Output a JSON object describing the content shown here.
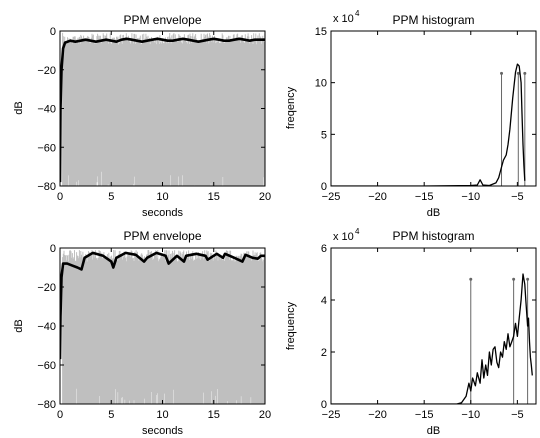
{
  "chart_data": [
    {
      "id": "env1",
      "type": "line",
      "title": "PPM envelope",
      "xlabel": "seconds",
      "ylabel": "dB",
      "xlim": [
        0,
        20
      ],
      "ylim": [
        -80,
        0
      ],
      "xticks": [
        0,
        5,
        10,
        15,
        20
      ],
      "yticks": [
        0,
        -20,
        -40,
        -60,
        -80
      ],
      "raw_signal": {
        "level_range": [
          -80,
          -1
        ]
      },
      "series": [
        {
          "x": [
            0,
            0.05,
            0.15,
            0.3,
            0.5,
            1,
            1.5,
            2,
            2.5,
            3,
            3.5,
            4,
            4.5,
            5,
            5.5,
            6,
            6.5,
            7,
            7.5,
            8,
            8.5,
            9,
            9.5,
            10,
            10.5,
            11,
            11.5,
            12,
            12.5,
            13,
            13.5,
            14,
            14.5,
            15,
            15.5,
            16,
            16.5,
            17,
            17.5,
            18,
            18.5,
            19,
            19.5,
            20
          ],
          "y": [
            -78,
            -40,
            -20,
            -9,
            -6,
            -5,
            -5.5,
            -5,
            -4.5,
            -5,
            -5.5,
            -5,
            -4.5,
            -5,
            -5.5,
            -4.5,
            -4,
            -4.5,
            -5,
            -5.5,
            -5,
            -4.5,
            -4,
            -4.5,
            -5,
            -5,
            -4.5,
            -4,
            -4.5,
            -5,
            -5.5,
            -5,
            -4.5,
            -4,
            -4.5,
            -5,
            -5,
            -4.5,
            -4,
            -4.5,
            -5,
            -4.5,
            -4.5,
            -4.5
          ]
        }
      ]
    },
    {
      "id": "hist1",
      "type": "line",
      "title": "PPM histogram",
      "xlabel": "dB",
      "ylabel": "freqency",
      "xlim": [
        -25,
        -3
      ],
      "ylim": [
        0,
        15
      ],
      "y_scale_exponent": "4",
      "xticks": [
        -25,
        -20,
        -15,
        -10,
        -5
      ],
      "yticks": [
        0,
        5,
        10,
        15
      ],
      "series": [
        {
          "x": [
            -25,
            -20,
            -15,
            -10,
            -9.3,
            -9,
            -8.7,
            -8,
            -7.3,
            -7.0,
            -6.8,
            -6.5,
            -6.2,
            -6.0,
            -5.8,
            -5.5,
            -5.2,
            -5.0,
            -4.8,
            -4.6,
            -4.5,
            -4.4,
            -4.3,
            -4.2
          ],
          "y": [
            0,
            0,
            0,
            0.05,
            0.1,
            0.6,
            0.1,
            0.05,
            0.3,
            0.8,
            1.5,
            2.5,
            3.0,
            4.0,
            5.5,
            8.5,
            11.0,
            11.8,
            11.6,
            10.0,
            7.0,
            4.0,
            2.0,
            0.5
          ]
        }
      ],
      "markers": [
        -6.7,
        -4.9,
        -4.2
      ],
      "marker_top": 10.9
    },
    {
      "id": "env2",
      "type": "line",
      "title": "PPM envelope",
      "xlabel": "seconds",
      "ylabel": "dB",
      "xlim": [
        0,
        20
      ],
      "ylim": [
        -80,
        0
      ],
      "xticks": [
        0,
        5,
        10,
        15,
        20
      ],
      "yticks": [
        0,
        -20,
        -40,
        -60,
        -80
      ],
      "raw_signal": {
        "level_range": [
          -80,
          -1
        ]
      },
      "series": [
        {
          "x": [
            0,
            0.05,
            0.15,
            0.3,
            0.7,
            1.2,
            1.7,
            2.1,
            2.4,
            3.2,
            4.2,
            5.0,
            5.2,
            5.5,
            6.4,
            7.4,
            8.2,
            8.5,
            9.4,
            10.3,
            10.6,
            11.4,
            12.1,
            12.3,
            13.3,
            14.2,
            14.4,
            15.3,
            15.9,
            16.1,
            17.0,
            17.8,
            18.1,
            18.8,
            19.3,
            19.6,
            20
          ],
          "y": [
            -57,
            -35,
            -15,
            -8,
            -8,
            -9,
            -10,
            -11,
            -5,
            -2.5,
            -4,
            -7,
            -10,
            -5,
            -2.5,
            -3.5,
            -7,
            -5,
            -2.5,
            -4,
            -8,
            -4,
            -7,
            -4,
            -3,
            -4,
            -6,
            -3,
            -5,
            -3,
            -5,
            -7,
            -3.5,
            -5,
            -5.5,
            -4,
            -4
          ]
        }
      ]
    },
    {
      "id": "hist2",
      "type": "line",
      "title": "PPM histogram",
      "xlabel": "dB",
      "ylabel": "frequency",
      "xlim": [
        -25,
        -3
      ],
      "ylim": [
        0,
        6
      ],
      "y_scale_exponent": "4",
      "xticks": [
        -25,
        -20,
        -15,
        -10,
        -5
      ],
      "yticks": [
        0,
        2,
        4,
        6
      ],
      "series": [
        {
          "x": [
            -25,
            -20,
            -15,
            -11.5,
            -11.0,
            -10.5,
            -10.2,
            -10.0,
            -9.8,
            -9.5,
            -9.3,
            -9.0,
            -8.8,
            -8.6,
            -8.4,
            -8.2,
            -8.0,
            -7.8,
            -7.6,
            -7.4,
            -7.2,
            -7.0,
            -6.8,
            -6.6,
            -6.4,
            -6.2,
            -6.0,
            -5.8,
            -5.6,
            -5.4,
            -5.2,
            -5.0,
            -4.8,
            -4.6,
            -4.4,
            -4.3,
            -4.2,
            -4.1,
            -4.0,
            -3.9,
            -3.8,
            -3.7,
            -3.6,
            -3.5,
            -3.4
          ],
          "y": [
            0,
            0,
            0,
            0,
            0.05,
            0.3,
            0.8,
            0.5,
            1.0,
            0.7,
            1.2,
            0.8,
            1.7,
            1.0,
            1.5,
            1.1,
            2.0,
            1.5,
            2.1,
            2.2,
            1.6,
            1.4,
            2.0,
            1.8,
            2.4,
            2.1,
            2.7,
            2.2,
            2.4,
            2.6,
            3.1,
            2.6,
            3.3,
            4.0,
            5.0,
            4.8,
            4.6,
            4.0,
            3.5,
            3.0,
            3.3,
            2.4,
            1.8,
            1.5,
            1.1
          ]
        }
      ],
      "markers": [
        -10,
        -5.4,
        -3.9
      ],
      "marker_top": 4.8
    }
  ]
}
